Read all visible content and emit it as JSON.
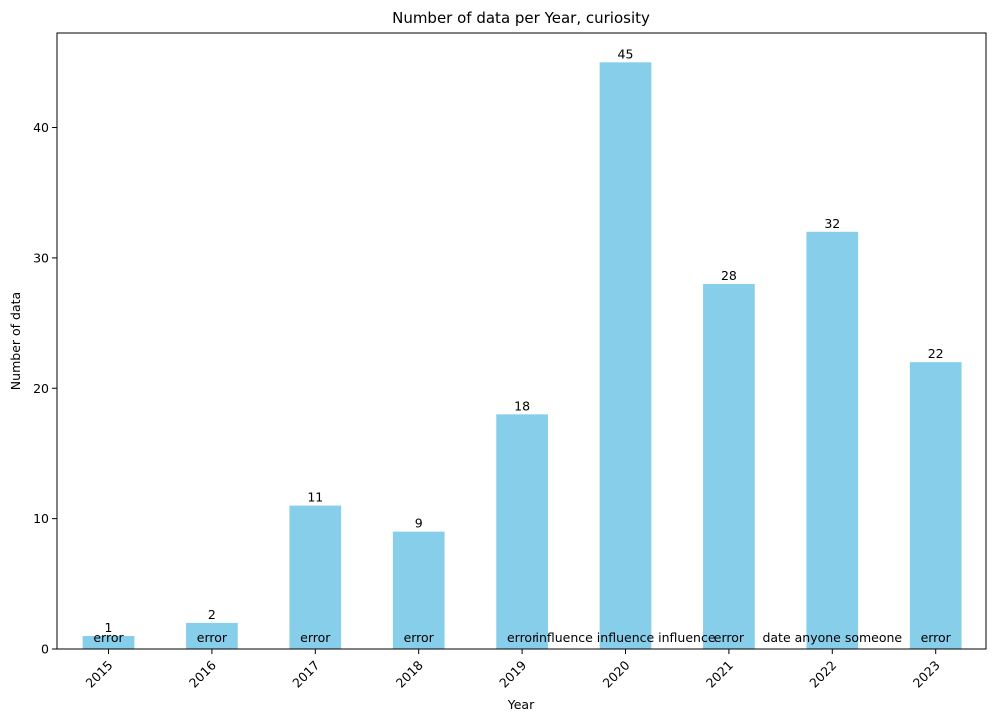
{
  "chart_data": {
    "type": "bar",
    "title": "Number of data per Year, curiosity",
    "xlabel": "Year",
    "ylabel": "Number of data",
    "categories": [
      "2015",
      "2016",
      "2017",
      "2018",
      "2019",
      "2020",
      "2021",
      "2022",
      "2023"
    ],
    "values": [
      1,
      2,
      11,
      9,
      18,
      45,
      28,
      32,
      22
    ],
    "bar_labels": [
      "error",
      "error",
      "error",
      "error",
      "error",
      "influence influence influence",
      "error",
      "date anyone someone",
      "error"
    ],
    "yticks": [
      0,
      10,
      20,
      30,
      40
    ],
    "ylim": [
      0,
      47.25
    ],
    "grid": false,
    "legend": "none",
    "colors": {
      "bar": "#87ceeb",
      "axis": "#000000"
    }
  }
}
